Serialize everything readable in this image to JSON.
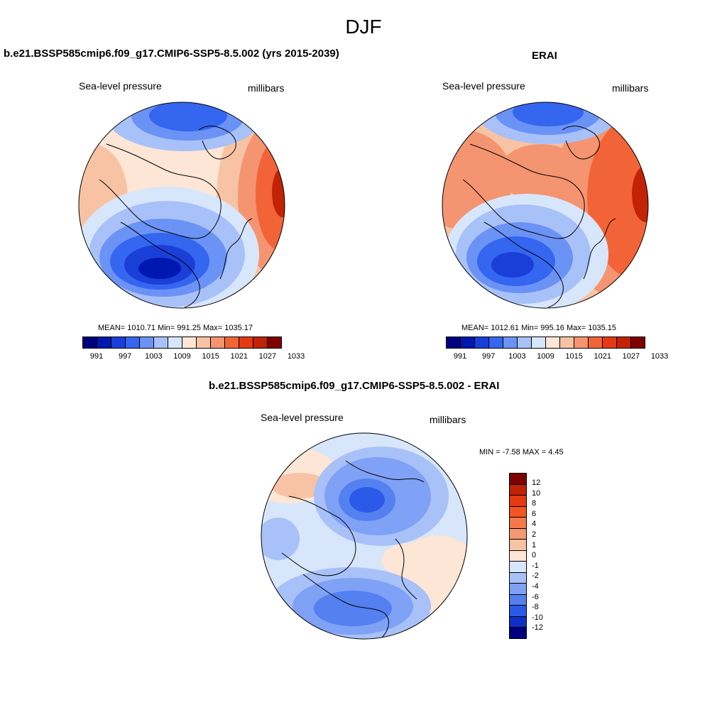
{
  "figure": {
    "season": "DJF"
  },
  "panels": [
    {
      "title": "b.e21.BSSP585cmip6.f09_g17.CMIP6-SSP5-8.5.002 (yrs 2015-2039)",
      "variable": "Sea-level pressure",
      "units": "millibars",
      "stats": "MEAN= 1010.71  Min= 991.25  Max= 1035.17"
    },
    {
      "title": "ERAI",
      "variable": "Sea-level pressure",
      "units": "millibars",
      "stats": "MEAN= 1012.61  Min= 995.16  Max= 1035.15"
    },
    {
      "title": "b.e21.BSSP585cmip6.f09_g17.CMIP6-SSP5-8.5.002 - ERAI",
      "variable": "Sea-level pressure",
      "units": "millibars",
      "stats": "MIN =  -7.58 MAX =   4.45"
    }
  ],
  "colorbar_slp": {
    "labels": [
      "991",
      "997",
      "1003",
      "1009",
      "1015",
      "1021",
      "1027",
      "1033"
    ],
    "colors": [
      "#00007f",
      "#0018b0",
      "#1a3fd9",
      "#3466f0",
      "#6b93f5",
      "#a8c1f8",
      "#d7e6fb",
      "#fde6d5",
      "#f8c3a4",
      "#f49470",
      "#f26438",
      "#e43a14",
      "#c22206",
      "#7f0000"
    ]
  },
  "colorbar_diff": {
    "labels": [
      "12",
      "10",
      "8",
      "6",
      "4",
      "2",
      "1",
      "0",
      "-1",
      "-2",
      "-4",
      "-6",
      "-8",
      "-10",
      "-12"
    ],
    "colors": [
      "#7f0000",
      "#c22206",
      "#e43a14",
      "#f5531f",
      "#f4784a",
      "#f49a72",
      "#f8c3a4",
      "#fde6d5",
      "#d7e6fb",
      "#a8c1f8",
      "#7fa1f6",
      "#5480f0",
      "#2b5ae8",
      "#0f2fc8",
      "#00007f"
    ]
  }
}
